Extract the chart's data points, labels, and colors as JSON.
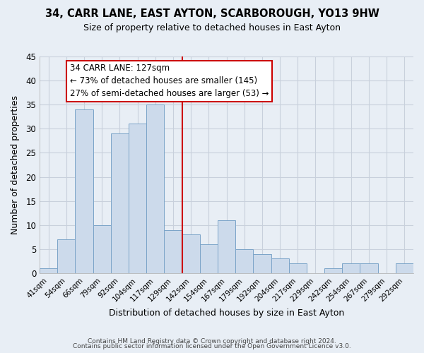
{
  "title": "34, CARR LANE, EAST AYTON, SCARBOROUGH, YO13 9HW",
  "subtitle": "Size of property relative to detached houses in East Ayton",
  "xlabel": "Distribution of detached houses by size in East Ayton",
  "ylabel": "Number of detached properties",
  "bar_color": "#ccdaeb",
  "bar_edge_color": "#7ba4c8",
  "x_labels": [
    "41sqm",
    "54sqm",
    "66sqm",
    "79sqm",
    "92sqm",
    "104sqm",
    "117sqm",
    "129sqm",
    "142sqm",
    "154sqm",
    "167sqm",
    "179sqm",
    "192sqm",
    "204sqm",
    "217sqm",
    "229sqm",
    "242sqm",
    "254sqm",
    "267sqm",
    "279sqm",
    "292sqm"
  ],
  "bar_heights": [
    1,
    7,
    34,
    10,
    29,
    31,
    35,
    9,
    8,
    6,
    11,
    5,
    4,
    3,
    2,
    0,
    1,
    2,
    2,
    0,
    2
  ],
  "vline_index": 7,
  "vline_color": "#cc0000",
  "annotation_title": "34 CARR LANE: 127sqm",
  "annotation_line1": "← 73% of detached houses are smaller (145)",
  "annotation_line2": "27% of semi-detached houses are larger (53) →",
  "annotation_box_color": "#ffffff",
  "annotation_box_edge": "#cc0000",
  "ylim": [
    0,
    45
  ],
  "yticks": [
    0,
    5,
    10,
    15,
    20,
    25,
    30,
    35,
    40,
    45
  ],
  "footnote1": "Contains HM Land Registry data © Crown copyright and database right 2024.",
  "footnote2": "Contains public sector information licensed under the Open Government Licence v3.0.",
  "background_color": "#e8eef5",
  "plot_bg_color": "#e8eef5",
  "grid_color": "#c8d0dc"
}
